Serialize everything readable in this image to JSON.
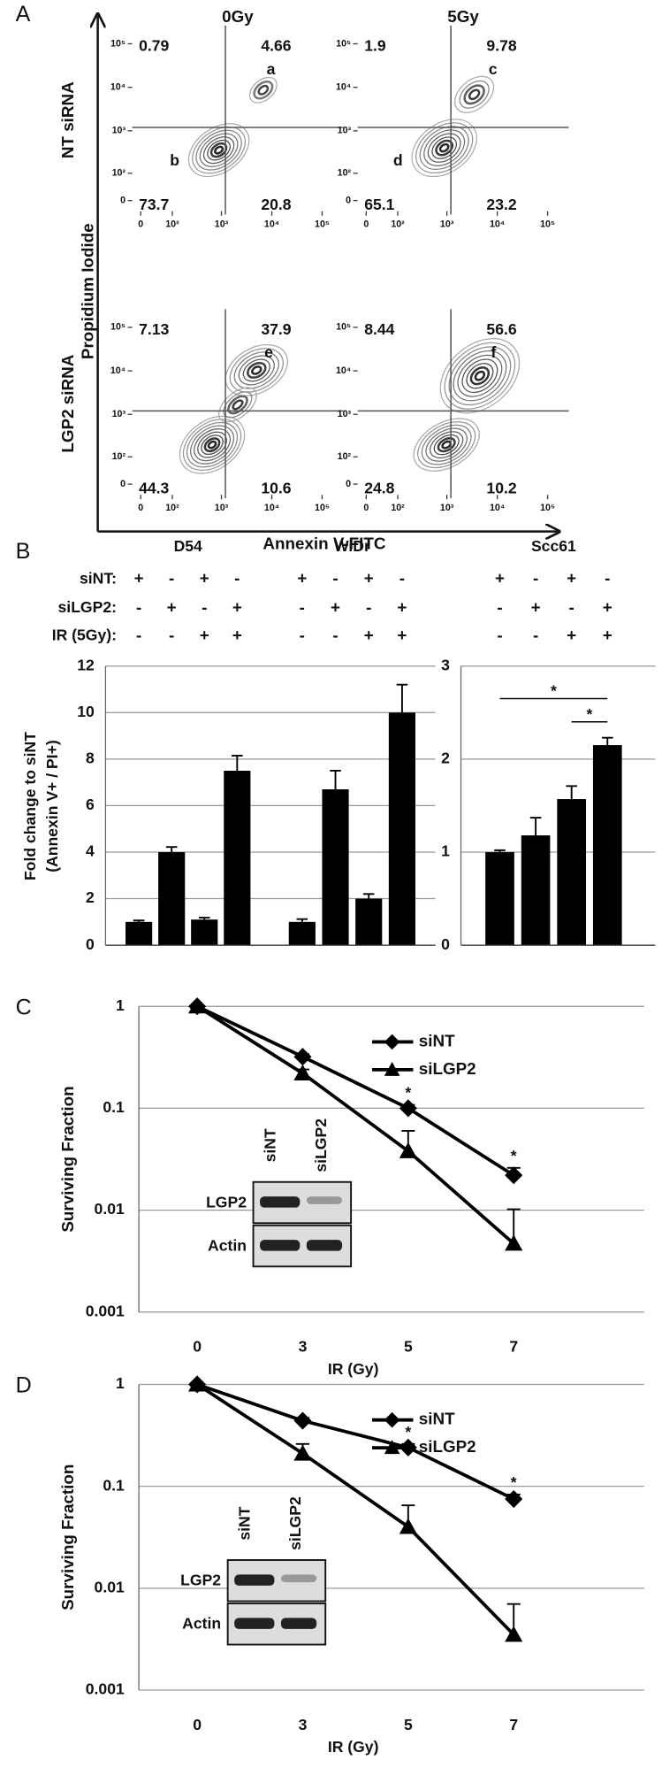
{
  "chart_data": [
    {
      "panel": "A",
      "type": "contour",
      "columns": [
        "0Gy",
        "5Gy"
      ],
      "rows": [
        "NT siRNA",
        "LGP2 siRNA"
      ],
      "xlabel": "Annexin V-FITC",
      "ylabel": "Propidium Iodide",
      "scale": "asinh",
      "xlim": [
        -20,
        262144
      ],
      "ylim": [
        -20,
        262144
      ],
      "xticks": [
        0,
        {
          "value": 100,
          "label": "10²"
        },
        {
          "value": 1000,
          "label": "10³"
        },
        {
          "value": 10000,
          "label": "10⁴"
        },
        {
          "value": 100000,
          "label": "10⁵"
        }
      ],
      "yticks": [
        0,
        {
          "value": 100,
          "label": "10²"
        },
        {
          "value": 1000,
          "label": "10³"
        },
        {
          "value": 10000,
          "label": "10⁴"
        },
        {
          "value": 100000,
          "label": "10⁵"
        }
      ],
      "gates": {
        "x": 1200,
        "y": 1200
      },
      "plots": [
        {
          "quadrants": [
            0.79,
            4.66,
            73.7,
            20.8
          ],
          "annotations": [
            "a",
            "b"
          ]
        },
        {
          "quadrants": [
            1.9,
            9.78,
            65.1,
            23.2
          ],
          "annotations": [
            "c",
            "d"
          ]
        },
        {
          "quadrants": [
            7.13,
            37.9,
            44.3,
            10.6
          ],
          "annotations": [
            "e"
          ]
        },
        {
          "quadrants": [
            8.44,
            56.6,
            24.8,
            10.2
          ],
          "annotations": [
            "f"
          ]
        }
      ]
    },
    {
      "panel": "B",
      "type": "bar",
      "ylabel": [
        "Fold change to siNT",
        "(Annexin V+ / PI+)"
      ],
      "condition_rows": [
        {
          "label": "siNT:",
          "signs": [
            "+",
            "-",
            "+",
            "-"
          ]
        },
        {
          "label": "siLGP2:",
          "signs": [
            "-",
            "+",
            "-",
            "+"
          ]
        },
        {
          "label": "IR (5Gy):",
          "signs": [
            "-",
            "-",
            "+",
            "+"
          ]
        }
      ],
      "groups": [
        {
          "name": "D54",
          "values": [
            1,
            4,
            1.1,
            7.5
          ],
          "errors": [
            0.06,
            0.22,
            0.08,
            0.65
          ]
        },
        {
          "name": "WiDr",
          "values": [
            1,
            6.7,
            2,
            10
          ],
          "errors": [
            0.12,
            0.8,
            0.2,
            1.2
          ]
        },
        {
          "name": "Scc61",
          "axis": "y2",
          "values": [
            1,
            1.18,
            1.57,
            2.15
          ],
          "errors": [
            0.02,
            0.19,
            0.14,
            0.08
          ],
          "significance": [
            {
              "label": "*",
              "y": 2.65
            },
            {
              "label": "*",
              "y": 2.4
            }
          ]
        }
      ],
      "color": "#000000",
      "ylim": [
        0,
        12
      ],
      "yticks": [
        0,
        2,
        4,
        6,
        8,
        10,
        12
      ],
      "y2lim": [
        0,
        3
      ],
      "y2ticks": [
        0,
        1,
        2,
        3
      ],
      "grid": true
    },
    {
      "panel": "C",
      "type": "line",
      "categories": [
        "0",
        "3",
        "5",
        "7"
      ],
      "xlabel": "IR (Gy)",
      "ylabel": "Surviving Fraction",
      "log_scale": true,
      "ylim": [
        0.001,
        1
      ],
      "yticks": [
        0.001,
        0.01,
        0.1,
        1
      ],
      "grid": true,
      "legend": "top-right",
      "series": [
        {
          "name": "siNT",
          "color": "#000000",
          "marker": "diamond",
          "values": [
            1,
            0.32,
            0.1,
            0.022
          ],
          "errors": [
            null,
            0.02,
            0.008,
            0.004
          ]
        },
        {
          "name": "siLGP2",
          "color": "#000000",
          "marker": "triangle",
          "values": [
            1,
            0.22,
            0.038,
            0.0047
          ],
          "errors": [
            null,
            0.02,
            0.022,
            0.0055
          ]
        }
      ],
      "significance": [
        null,
        null,
        "*",
        "*"
      ],
      "inset": {
        "columns": [
          "siNT",
          "siLGP2"
        ],
        "rows": [
          "LGP2",
          "Actin"
        ]
      }
    },
    {
      "panel": "D",
      "type": "line",
      "categories": [
        "0",
        "3",
        "5",
        "7"
      ],
      "xlabel": "IR (Gy)",
      "ylabel": "Surviving Fraction",
      "log_scale": true,
      "ylim": [
        0.001,
        1
      ],
      "yticks": [
        0.001,
        0.01,
        0.1,
        1
      ],
      "grid": true,
      "legend": "top-right",
      "series": [
        {
          "name": "siNT",
          "color": "#000000",
          "marker": "diamond",
          "values": [
            1,
            0.44,
            0.24,
            0.075
          ],
          "errors": [
            null,
            0.03,
            0.02,
            0.008
          ]
        },
        {
          "name": "siLGP2",
          "color": "#000000",
          "marker": "triangle",
          "values": [
            1,
            0.21,
            0.04,
            0.0035
          ],
          "errors": [
            null,
            0.05,
            0.025,
            0.0035
          ]
        }
      ],
      "significance": [
        null,
        null,
        "*",
        "*"
      ],
      "inset": {
        "columns": [
          "siNT",
          "siLGP2"
        ],
        "rows": [
          "LGP2",
          "Actin"
        ]
      }
    }
  ]
}
